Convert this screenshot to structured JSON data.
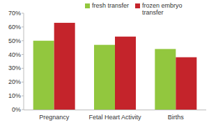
{
  "chart_data": {
    "type": "bar",
    "categories": [
      "Pregnancy",
      "Fetal Heart Activity",
      "Births"
    ],
    "series": [
      {
        "name": "fresh transfer",
        "color": "#92c73e",
        "values": [
          50,
          47,
          44
        ]
      },
      {
        "name": "frozen embryo transfer",
        "color": "#c4242b",
        "values": [
          63,
          53,
          38
        ]
      }
    ],
    "ylim": [
      0,
      70
    ],
    "yticks": [
      {
        "value": 0,
        "label": "0%"
      },
      {
        "value": 10,
        "label": "10%"
      },
      {
        "value": 20,
        "label": "20%"
      },
      {
        "value": 30,
        "label": "30%"
      },
      {
        "value": 40,
        "label": "40%"
      },
      {
        "value": 50,
        "label": "50%"
      },
      {
        "value": 60,
        "label": "60%"
      },
      {
        "value": 70,
        "label": "70%"
      }
    ],
    "grid": false,
    "legend": "top"
  }
}
